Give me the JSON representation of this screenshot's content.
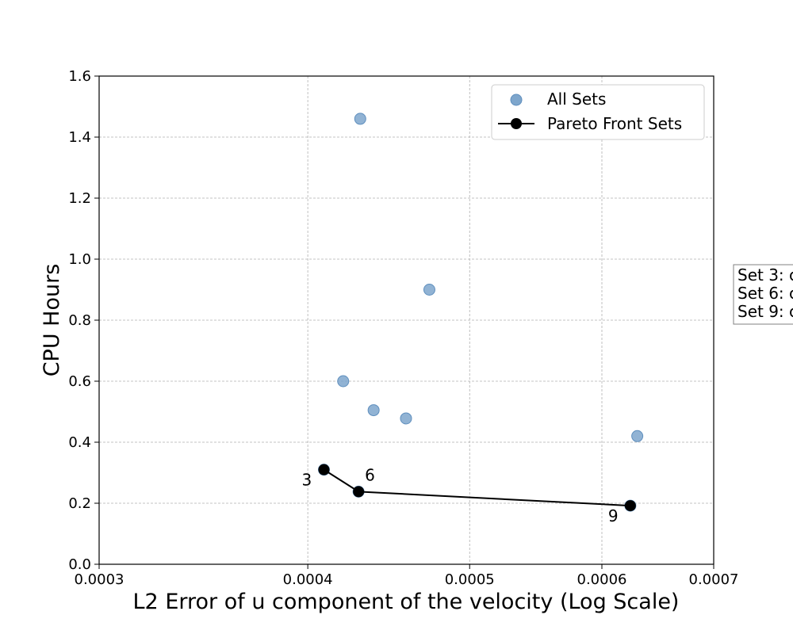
{
  "chart_data": {
    "type": "scatter",
    "xlabel": "L2 Error of u component of the velocity (Log Scale)",
    "ylabel": "CPU Hours",
    "xscale": "log",
    "xlim": [
      0.0003,
      0.0007
    ],
    "ylim": [
      0.0,
      1.6
    ],
    "x_ticks": [
      0.0003,
      0.0004,
      0.0005,
      0.0006,
      0.0007
    ],
    "x_tick_labels": [
      "0.0003",
      "0.0004",
      "0.0005",
      "0.0006",
      "0.0007"
    ],
    "y_ticks": [
      0.0,
      0.2,
      0.4,
      0.6,
      0.8,
      1.0,
      1.2,
      1.4,
      1.6
    ],
    "y_tick_labels": [
      "0.0",
      "0.2",
      "0.4",
      "0.6",
      "0.8",
      "1.0",
      "1.2",
      "1.4",
      "1.6"
    ],
    "grid": true,
    "legend_position": "top-right",
    "series": [
      {
        "name": "All Sets",
        "kind": "scatter",
        "color": "#7ea6cc",
        "points": [
          {
            "x": 0.00043,
            "y": 1.46
          },
          {
            "x": 0.000473,
            "y": 0.9
          },
          {
            "x": 0.00042,
            "y": 0.6
          },
          {
            "x": 0.000438,
            "y": 0.505
          },
          {
            "x": 0.000458,
            "y": 0.478
          },
          {
            "x": 0.00063,
            "y": 0.42
          },
          {
            "x": 0.000409,
            "y": 0.31
          },
          {
            "x": 0.000429,
            "y": 0.238
          },
          {
            "x": 0.000624,
            "y": 0.192
          }
        ]
      },
      {
        "name": "Pareto Front Sets",
        "kind": "line-marker",
        "color": "#000000",
        "points": [
          {
            "x": 0.000409,
            "y": 0.31,
            "label": "3"
          },
          {
            "x": 0.000429,
            "y": 0.238,
            "label": "6"
          },
          {
            "x": 0.000624,
            "y": 0.192,
            "label": "9"
          }
        ]
      }
    ],
    "side_text": [
      "Set 3: c",
      "Set 6: c",
      "Set 9: c"
    ]
  }
}
